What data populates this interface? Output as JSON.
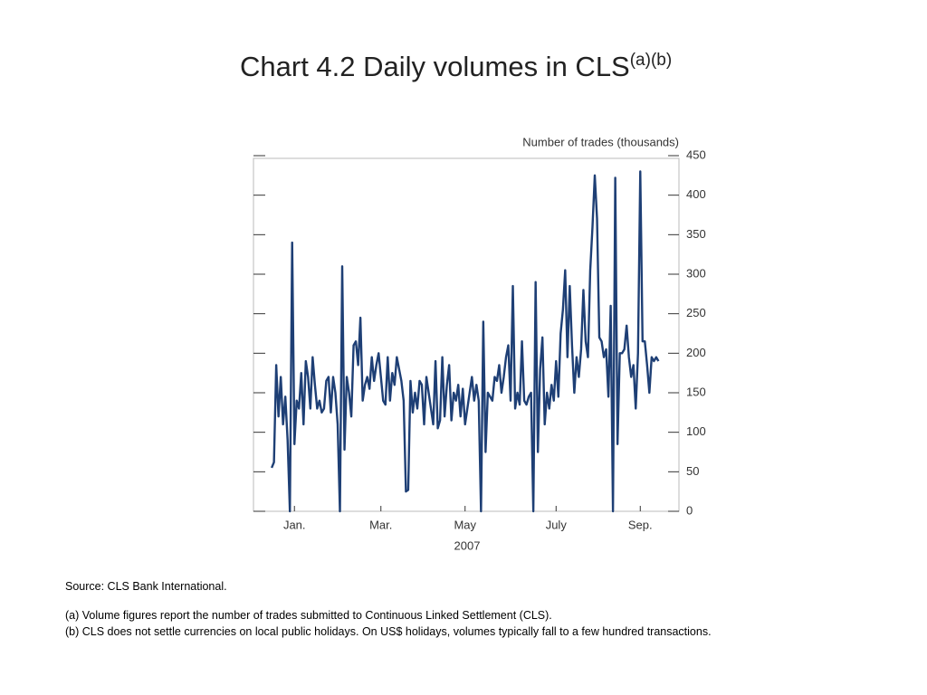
{
  "chart_data": {
    "type": "line",
    "title": "Chart 4.2  Daily volumes in CLS",
    "title_superscript": "(a)(b)",
    "y_axis_label": "Number of trades (thousands)",
    "x_axis_label": "2007",
    "color": "#1e3f75",
    "xlim": [
      -8,
      179
    ],
    "xticks": [
      {
        "value": 10,
        "label": "Jan."
      },
      {
        "value": 48,
        "label": "Mar."
      },
      {
        "value": 85,
        "label": "May"
      },
      {
        "value": 125,
        "label": "July"
      },
      {
        "value": 162,
        "label": "Sep."
      }
    ],
    "ylim": [
      0,
      450
    ],
    "yticks": [
      0,
      50,
      100,
      150,
      200,
      250,
      300,
      350,
      400,
      450
    ],
    "values": [
      55,
      62,
      185,
      120,
      170,
      110,
      145,
      90,
      0,
      340,
      85,
      140,
      130,
      175,
      110,
      190,
      170,
      130,
      195,
      160,
      130,
      140,
      125,
      130,
      165,
      170,
      125,
      170,
      150,
      110,
      0,
      310,
      78,
      170,
      150,
      120,
      210,
      215,
      185,
      245,
      140,
      160,
      170,
      155,
      195,
      165,
      185,
      200,
      170,
      140,
      135,
      195,
      140,
      175,
      160,
      195,
      180,
      165,
      140,
      25,
      27,
      165,
      125,
      150,
      130,
      165,
      160,
      110,
      170,
      150,
      130,
      110,
      190,
      105,
      115,
      195,
      120,
      160,
      185,
      115,
      150,
      140,
      160,
      120,
      155,
      110,
      130,
      150,
      170,
      140,
      160,
      140,
      0,
      240,
      75,
      150,
      145,
      140,
      170,
      165,
      185,
      150,
      170,
      195,
      210,
      140,
      285,
      130,
      150,
      135,
      215,
      140,
      135,
      145,
      150,
      0,
      290,
      75,
      180,
      220,
      110,
      150,
      130,
      160,
      140,
      190,
      145,
      225,
      255,
      305,
      195,
      285,
      210,
      150,
      195,
      170,
      205,
      280,
      215,
      195,
      305,
      360,
      425,
      370,
      220,
      215,
      195,
      205,
      145,
      260,
      0,
      422,
      85,
      200,
      200,
      205,
      235,
      195,
      170,
      185,
      130,
      200,
      430,
      215,
      215,
      185,
      150,
      195,
      190,
      195,
      190
    ]
  },
  "notes": {
    "source": "Source:  CLS Bank International.",
    "a": "(a)  Volume figures report the number of trades submitted to Continuous Linked Settlement (CLS).",
    "b": "(b)  CLS does not settle currencies on local public holidays.  On US$ holidays, volumes typically fall to a few hundred transactions."
  }
}
